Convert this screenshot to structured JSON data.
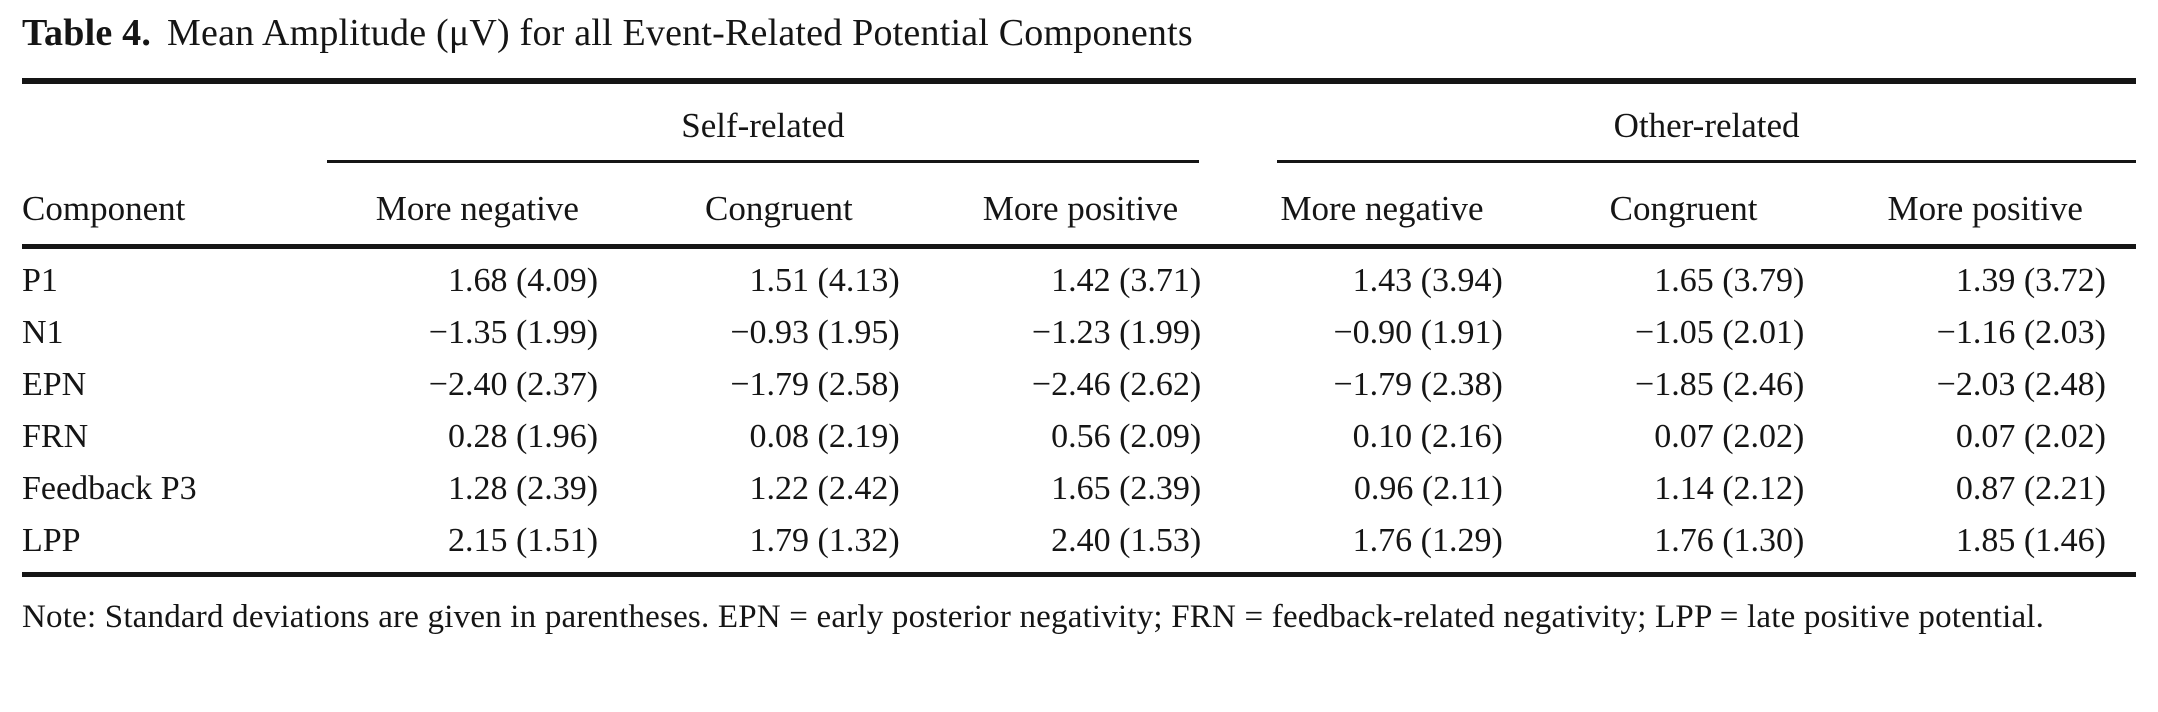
{
  "title": {
    "label": "Table 4.",
    "text": "Mean Amplitude (μV) for all Event-Related Potential Components"
  },
  "table": {
    "groups": [
      {
        "label": "Self-related"
      },
      {
        "label": "Other-related"
      }
    ],
    "col1_header": "Component",
    "sub_headers": [
      "More negative",
      "Congruent",
      "More positive",
      "More negative",
      "Congruent",
      "More positive"
    ],
    "rows": [
      {
        "component": "P1",
        "values": [
          "1.68 (4.09)",
          "1.51 (4.13)",
          "1.42 (3.71)",
          "1.43 (3.94)",
          "1.65 (3.79)",
          "1.39 (3.72)"
        ]
      },
      {
        "component": "N1",
        "values": [
          "−1.35 (1.99)",
          "−0.93 (1.95)",
          "−1.23 (1.99)",
          "−0.90 (1.91)",
          "−1.05 (2.01)",
          "−1.16 (2.03)"
        ]
      },
      {
        "component": "EPN",
        "values": [
          "−2.40 (2.37)",
          "−1.79 (2.58)",
          "−2.46 (2.62)",
          "−1.79 (2.38)",
          "−1.85 (2.46)",
          "−2.03 (2.48)"
        ]
      },
      {
        "component": "FRN",
        "values": [
          "0.28 (1.96)",
          "0.08 (2.19)",
          "0.56 (2.09)",
          "0.10 (2.16)",
          "0.07 (2.02)",
          "0.07 (2.02)"
        ]
      },
      {
        "component": "Feedback P3",
        "values": [
          "1.28 (2.39)",
          "1.22 (2.42)",
          "1.65 (2.39)",
          "0.96 (2.11)",
          "1.14 (2.12)",
          "0.87 (2.21)"
        ]
      },
      {
        "component": "LPP",
        "values": [
          "2.15 (1.51)",
          "1.79 (1.32)",
          "2.40 (1.53)",
          "1.76 (1.29)",
          "1.76 (1.30)",
          "1.85 (1.46)"
        ]
      }
    ]
  },
  "note": "Note: Standard deviations are given in parentheses. EPN = early posterior negativity; FRN = feedback-related negativity; LPP = late positive potential.",
  "colors": {
    "text": "#151515",
    "background": "#ffffff",
    "rule": "#151515"
  }
}
